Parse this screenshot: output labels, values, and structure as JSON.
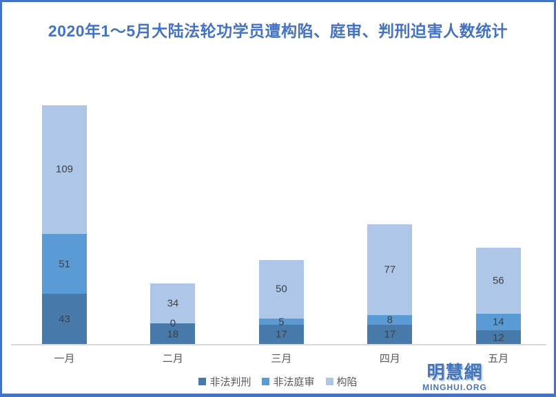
{
  "frame": {
    "border_color": "#4472C4",
    "background": "#FFFFFF"
  },
  "chart_data": {
    "type": "bar",
    "stacked": true,
    "title": "2020年1～5月大陆法轮功学员遭构陷、庭审、判刑迫害人数统计",
    "title_color": "#4472C4",
    "categories": [
      "一月",
      "二月",
      "三月",
      "四月",
      "五月"
    ],
    "series": [
      {
        "name": "非法判刑",
        "color": "#4879AB",
        "values": [
          43,
          18,
          17,
          17,
          12
        ]
      },
      {
        "name": "非法庭审",
        "color": "#5B9BD5",
        "values": [
          51,
          0,
          5,
          8,
          14
        ]
      },
      {
        "name": "构陷",
        "color": "#AEC7E8",
        "values": [
          109,
          34,
          50,
          77,
          56
        ]
      }
    ],
    "totals": [
      203,
      52,
      72,
      102,
      82
    ],
    "data_labels": true,
    "label_color": "#404040",
    "axis_line_color": "#D9D9D9",
    "xlabel": "",
    "ylabel": "",
    "y_axis_visible": false,
    "gridlines": false,
    "legend_position": "bottom"
  },
  "logo": {
    "chinese": "明慧網",
    "english": "MINGHUI.ORG",
    "color": "#4575B9"
  }
}
